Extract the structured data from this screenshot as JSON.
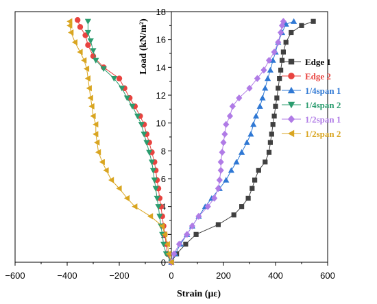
{
  "chart_data": {
    "type": "scatter",
    "xlabel": "Strain (με)",
    "ylabel": "Load (kN/m²)",
    "xlim": [
      -600,
      600
    ],
    "ylim": [
      0,
      18
    ],
    "xticks": [
      -600,
      -400,
      -200,
      0,
      200,
      400,
      600
    ],
    "yticks": [
      0,
      2,
      4,
      6,
      8,
      10,
      12,
      14,
      16,
      18
    ],
    "grid": false,
    "legend_position": "right",
    "series": [
      {
        "name": "Edge 1",
        "color": "#404040",
        "marker": "square",
        "points": [
          [
            0,
            0
          ],
          [
            20,
            0.6
          ],
          [
            55,
            1.3
          ],
          [
            95,
            2.0
          ],
          [
            180,
            2.7
          ],
          [
            240,
            3.4
          ],
          [
            270,
            4.0
          ],
          [
            295,
            4.6
          ],
          [
            310,
            5.3
          ],
          [
            320,
            5.9
          ],
          [
            335,
            6.6
          ],
          [
            360,
            7.2
          ],
          [
            375,
            7.9
          ],
          [
            380,
            8.6
          ],
          [
            385,
            9.2
          ],
          [
            390,
            9.9
          ],
          [
            395,
            10.5
          ],
          [
            400,
            11.2
          ],
          [
            405,
            11.8
          ],
          [
            410,
            12.5
          ],
          [
            415,
            13.2
          ],
          [
            420,
            13.8
          ],
          [
            425,
            14.5
          ],
          [
            430,
            15.1
          ],
          [
            440,
            15.8
          ],
          [
            460,
            16.5
          ],
          [
            500,
            17.0
          ],
          [
            545,
            17.3
          ]
        ]
      },
      {
        "name": "Edge 2",
        "color": "#e8433f",
        "marker": "circle",
        "points": [
          [
            0,
            0
          ],
          [
            -15,
            0.6
          ],
          [
            -20,
            1.3
          ],
          [
            -25,
            2.0
          ],
          [
            -30,
            2.6
          ],
          [
            -35,
            3.3
          ],
          [
            -40,
            4.0
          ],
          [
            -45,
            4.6
          ],
          [
            -50,
            5.3
          ],
          [
            -55,
            5.9
          ],
          [
            -60,
            6.6
          ],
          [
            -65,
            7.2
          ],
          [
            -75,
            7.9
          ],
          [
            -85,
            8.6
          ],
          [
            -95,
            9.2
          ],
          [
            -105,
            9.9
          ],
          [
            -120,
            10.5
          ],
          [
            -140,
            11.2
          ],
          [
            -160,
            11.8
          ],
          [
            -180,
            12.5
          ],
          [
            -200,
            13.2
          ],
          [
            -260,
            14.0
          ],
          [
            -300,
            14.8
          ],
          [
            -320,
            15.6
          ],
          [
            -330,
            16.3
          ],
          [
            -350,
            16.9
          ],
          [
            -360,
            17.4
          ]
        ]
      },
      {
        "name": "1/4span 1",
        "color": "#2f78d4",
        "marker": "triangle-up",
        "points": [
          [
            0,
            0
          ],
          [
            15,
            0.6
          ],
          [
            35,
            1.3
          ],
          [
            60,
            2.0
          ],
          [
            80,
            2.6
          ],
          [
            105,
            3.3
          ],
          [
            130,
            4.0
          ],
          [
            155,
            4.6
          ],
          [
            185,
            5.3
          ],
          [
            210,
            5.9
          ],
          [
            230,
            6.6
          ],
          [
            250,
            7.2
          ],
          [
            270,
            7.9
          ],
          [
            290,
            8.6
          ],
          [
            305,
            9.2
          ],
          [
            315,
            9.9
          ],
          [
            325,
            10.5
          ],
          [
            340,
            11.2
          ],
          [
            350,
            11.8
          ],
          [
            360,
            12.5
          ],
          [
            370,
            13.2
          ],
          [
            380,
            13.8
          ],
          [
            390,
            14.5
          ],
          [
            400,
            15.1
          ],
          [
            410,
            15.8
          ],
          [
            425,
            16.5
          ],
          [
            440,
            17.1
          ],
          [
            470,
            17.3
          ]
        ]
      },
      {
        "name": "1/4span 2",
        "color": "#2a9c6e",
        "marker": "triangle-down",
        "points": [
          [
            0,
            0
          ],
          [
            -20,
            0.6
          ],
          [
            -30,
            1.3
          ],
          [
            -35,
            2.0
          ],
          [
            -40,
            2.6
          ],
          [
            -45,
            3.3
          ],
          [
            -50,
            4.0
          ],
          [
            -55,
            4.6
          ],
          [
            -60,
            5.3
          ],
          [
            -65,
            5.9
          ],
          [
            -70,
            6.6
          ],
          [
            -75,
            7.2
          ],
          [
            -85,
            7.9
          ],
          [
            -95,
            8.6
          ],
          [
            -105,
            9.2
          ],
          [
            -115,
            9.9
          ],
          [
            -130,
            10.5
          ],
          [
            -150,
            11.2
          ],
          [
            -170,
            11.8
          ],
          [
            -190,
            12.5
          ],
          [
            -220,
            13.2
          ],
          [
            -260,
            13.9
          ],
          [
            -290,
            14.5
          ],
          [
            -300,
            15.2
          ],
          [
            -310,
            15.9
          ],
          [
            -320,
            16.5
          ],
          [
            -320,
            17.3
          ]
        ]
      },
      {
        "name": "1/2span 1",
        "color": "#b07be6",
        "marker": "diamond",
        "points": [
          [
            0,
            0
          ],
          [
            10,
            0.6
          ],
          [
            30,
            1.3
          ],
          [
            60,
            2.0
          ],
          [
            80,
            2.6
          ],
          [
            105,
            3.3
          ],
          [
            140,
            4.0
          ],
          [
            165,
            4.6
          ],
          [
            180,
            5.3
          ],
          [
            185,
            5.9
          ],
          [
            190,
            6.6
          ],
          [
            190,
            7.2
          ],
          [
            195,
            7.9
          ],
          [
            200,
            8.6
          ],
          [
            205,
            9.2
          ],
          [
            210,
            9.9
          ],
          [
            225,
            10.5
          ],
          [
            235,
            11.2
          ],
          [
            260,
            11.8
          ],
          [
            300,
            12.5
          ],
          [
            330,
            13.2
          ],
          [
            355,
            13.8
          ],
          [
            375,
            14.5
          ],
          [
            395,
            15.1
          ],
          [
            410,
            15.8
          ],
          [
            420,
            16.5
          ],
          [
            425,
            17.0
          ],
          [
            430,
            17.3
          ]
        ]
      },
      {
        "name": "1/2span 2",
        "color": "#d9a520",
        "marker": "triangle-left",
        "points": [
          [
            0,
            0
          ],
          [
            -10,
            0.6
          ],
          [
            -15,
            1.3
          ],
          [
            -25,
            2.0
          ],
          [
            -35,
            2.6
          ],
          [
            -80,
            3.3
          ],
          [
            -140,
            4.0
          ],
          [
            -170,
            4.6
          ],
          [
            -200,
            5.3
          ],
          [
            -230,
            5.9
          ],
          [
            -250,
            6.6
          ],
          [
            -265,
            7.2
          ],
          [
            -280,
            7.9
          ],
          [
            -285,
            8.6
          ],
          [
            -290,
            9.2
          ],
          [
            -290,
            9.9
          ],
          [
            -300,
            10.5
          ],
          [
            -305,
            11.2
          ],
          [
            -310,
            11.8
          ],
          [
            -315,
            12.5
          ],
          [
            -320,
            13.2
          ],
          [
            -325,
            13.9
          ],
          [
            -335,
            14.5
          ],
          [
            -350,
            15.1
          ],
          [
            -370,
            15.8
          ],
          [
            -385,
            16.5
          ],
          [
            -390,
            17.0
          ],
          [
            -390,
            17.3
          ]
        ]
      }
    ]
  }
}
